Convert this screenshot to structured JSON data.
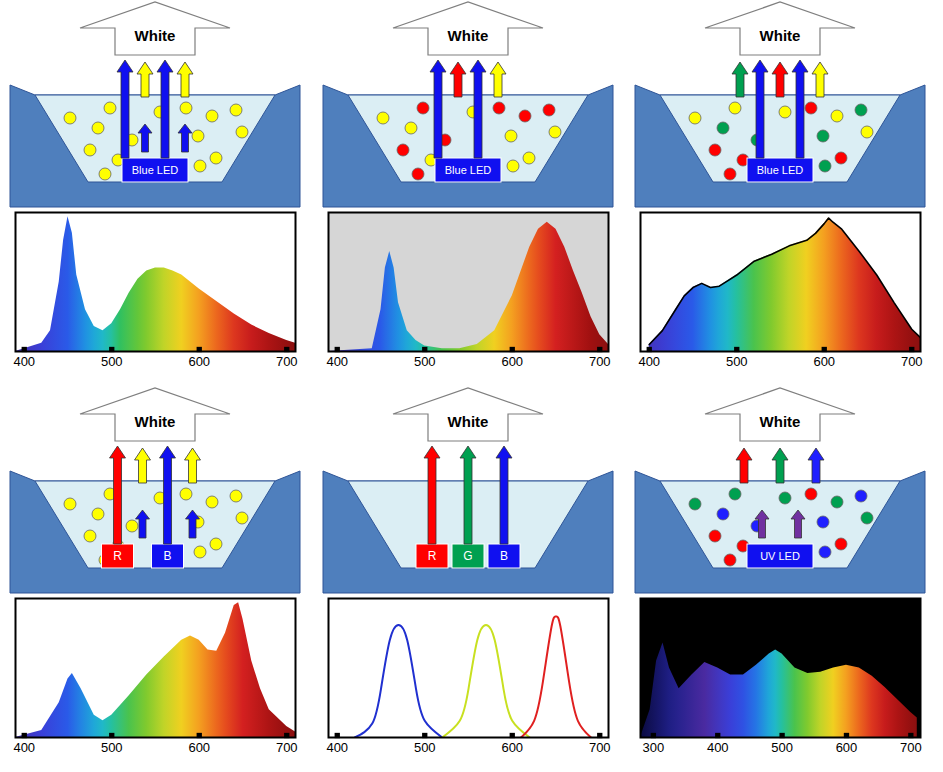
{
  "diagrams": [
    {
      "label": "White",
      "chips": [
        {
          "label": "Blue LED",
          "color": "#1010f0"
        }
      ],
      "phosphors": [
        "#ffff00"
      ],
      "emission": [
        "#1010f0",
        "#ffff00",
        "#1010f0",
        "#ffff00"
      ],
      "excitation": "#1010f0"
    },
    {
      "label": "White",
      "chips": [
        {
          "label": "Blue LED",
          "color": "#1010f0"
        }
      ],
      "phosphors": [
        "#ffff00",
        "#ff0000"
      ],
      "emission": [
        "#1010f0",
        "#ff0000",
        "#1010f0",
        "#ffff00"
      ]
    },
    {
      "label": "White",
      "chips": [
        {
          "label": "Blue LED",
          "color": "#1010f0"
        }
      ],
      "phosphors": [
        "#ffff00",
        "#ff0000",
        "#00a050"
      ],
      "emission": [
        "#00a050",
        "#1010f0",
        "#ff0000",
        "#1010f0",
        "#ffff00"
      ]
    },
    {
      "label": "White",
      "chips": [
        {
          "label": "R",
          "color": "#ff0000"
        },
        {
          "label": "B",
          "color": "#1010f0"
        }
      ],
      "phosphors": [
        "#ffff00"
      ],
      "emission": [
        "#ff0000",
        "#ffff00",
        "#1010f0",
        "#ffff00"
      ],
      "excitation": "#1010f0"
    },
    {
      "label": "White",
      "chips": [
        {
          "label": "R",
          "color": "#ff0000"
        },
        {
          "label": "G",
          "color": "#00a050"
        },
        {
          "label": "B",
          "color": "#1010f0"
        }
      ],
      "emission": [
        "#ff0000",
        "#00a050",
        "#1010f0"
      ]
    },
    {
      "label": "White",
      "chips": [
        {
          "label": "UV LED",
          "color": "#1010f0"
        }
      ],
      "phosphors": [
        "#00a050",
        "#ff0000",
        "#2020ff"
      ],
      "emission": [
        "#ff0000",
        "#00a050",
        "#2020ff"
      ],
      "excitation": "#7030a0"
    }
  ],
  "chart_data": [
    {
      "type": "area",
      "xlim": [
        390,
        710
      ],
      "xticks": [
        400,
        500,
        600,
        700
      ],
      "ylim": [
        0,
        1
      ],
      "tick_labels": "x",
      "x": [
        390,
        400,
        420,
        430,
        440,
        445,
        450,
        455,
        460,
        470,
        480,
        490,
        500,
        510,
        520,
        530,
        540,
        550,
        560,
        570,
        580,
        590,
        600,
        620,
        640,
        660,
        680,
        700,
        710
      ],
      "values": [
        0,
        0.02,
        0.06,
        0.15,
        0.5,
        0.8,
        0.97,
        0.85,
        0.55,
        0.3,
        0.18,
        0.15,
        0.2,
        0.3,
        0.42,
        0.52,
        0.58,
        0.6,
        0.6,
        0.58,
        0.55,
        0.5,
        0.45,
        0.36,
        0.27,
        0.19,
        0.13,
        0.08,
        0.06
      ]
    },
    {
      "type": "area",
      "xlim": [
        390,
        710
      ],
      "xticks": [
        400,
        500,
        600,
        700
      ],
      "ylim": [
        0,
        1
      ],
      "tick_labels": "x",
      "x": [
        390,
        440,
        450,
        455,
        460,
        465,
        470,
        480,
        490,
        500,
        520,
        540,
        560,
        580,
        600,
        620,
        630,
        640,
        650,
        660,
        670,
        680,
        690,
        700,
        710
      ],
      "values": [
        0,
        0.02,
        0.3,
        0.6,
        0.72,
        0.6,
        0.35,
        0.15,
        0.08,
        0.04,
        0.02,
        0.02,
        0.05,
        0.15,
        0.4,
        0.75,
        0.88,
        0.93,
        0.88,
        0.75,
        0.58,
        0.42,
        0.25,
        0.12,
        0.05
      ]
    },
    {
      "type": "area",
      "xlim": [
        390,
        710
      ],
      "xticks": [
        400,
        500,
        600,
        700
      ],
      "ylim": [
        0,
        1
      ],
      "tick_labels": "x",
      "x": [
        400,
        415,
        430,
        440,
        450,
        460,
        470,
        480,
        490,
        500,
        520,
        540,
        560,
        570,
        580,
        590,
        600,
        605,
        610,
        620,
        640,
        660,
        680,
        700,
        710
      ],
      "values": [
        0.05,
        0.15,
        0.3,
        0.4,
        0.46,
        0.49,
        0.46,
        0.47,
        0.51,
        0.55,
        0.65,
        0.7,
        0.76,
        0.78,
        0.8,
        0.85,
        0.92,
        0.96,
        0.93,
        0.88,
        0.72,
        0.55,
        0.35,
        0.16,
        0.1
      ]
    },
    {
      "type": "area",
      "xlim": [
        390,
        710
      ],
      "xticks": [
        400,
        500,
        600,
        700
      ],
      "ylim": [
        0,
        1
      ],
      "tick_labels": "x",
      "x": [
        390,
        420,
        440,
        450,
        455,
        465,
        480,
        490,
        500,
        520,
        540,
        560,
        580,
        590,
        600,
        610,
        620,
        630,
        640,
        645,
        650,
        660,
        670,
        680,
        700,
        710
      ],
      "values": [
        0,
        0.05,
        0.25,
        0.42,
        0.46,
        0.35,
        0.16,
        0.12,
        0.16,
        0.3,
        0.45,
        0.58,
        0.7,
        0.73,
        0.7,
        0.63,
        0.62,
        0.75,
        0.95,
        0.97,
        0.85,
        0.55,
        0.35,
        0.2,
        0.08,
        0.04
      ]
    },
    {
      "type": "line",
      "xlim": [
        390,
        710
      ],
      "xticks": [
        400,
        500,
        600,
        700
      ],
      "ylim": [
        0,
        1
      ],
      "tick_labels": "x",
      "series": [
        {
          "color": "#2030d0",
          "x": [
            420,
            440,
            450,
            460,
            470,
            480,
            490,
            500,
            520
          ],
          "values": [
            0,
            0.1,
            0.35,
            0.7,
            0.81,
            0.7,
            0.35,
            0.12,
            0
          ]
        },
        {
          "color": "#c8e020",
          "x": [
            520,
            540,
            550,
            560,
            570,
            580,
            590,
            600,
            620
          ],
          "values": [
            0,
            0.12,
            0.35,
            0.7,
            0.81,
            0.7,
            0.35,
            0.12,
            0
          ]
        },
        {
          "color": "#e02020",
          "x": [
            610,
            625,
            635,
            645,
            650,
            655,
            665,
            675,
            690
          ],
          "values": [
            0,
            0.12,
            0.4,
            0.8,
            0.87,
            0.8,
            0.4,
            0.12,
            0
          ]
        }
      ]
    },
    {
      "type": "area",
      "xlim": [
        280,
        715
      ],
      "xticks": [
        300,
        400,
        500,
        600,
        700
      ],
      "ylim": [
        0,
        1
      ],
      "tick_labels": "x",
      "x": [
        280,
        295,
        305,
        315,
        325,
        340,
        360,
        380,
        400,
        420,
        440,
        460,
        480,
        490,
        500,
        520,
        540,
        560,
        580,
        600,
        620,
        640,
        660,
        680,
        700,
        710
      ],
      "values": [
        0,
        0.2,
        0.55,
        0.68,
        0.5,
        0.35,
        0.45,
        0.54,
        0.5,
        0.45,
        0.45,
        0.52,
        0.6,
        0.63,
        0.6,
        0.5,
        0.46,
        0.47,
        0.5,
        0.52,
        0.5,
        0.44,
        0.36,
        0.27,
        0.18,
        0.14
      ]
    }
  ]
}
